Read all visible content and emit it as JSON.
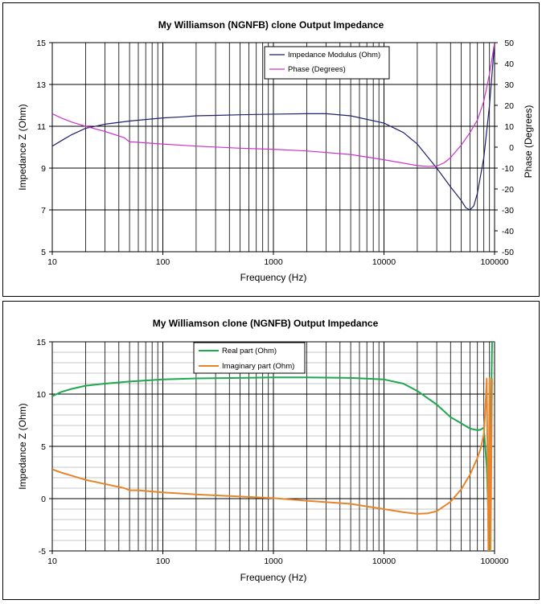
{
  "chart_data": [
    {
      "type": "line",
      "title": "My Williamson (NGNFB) clone Output Impedance",
      "xlabel": "Frequency (Hz)",
      "ylabel": "Impedance Z (Ohm)",
      "y2label": "Phase (Degrees)",
      "xscale": "log",
      "xlim": [
        10,
        100000
      ],
      "ylim": [
        5,
        15
      ],
      "y2lim": [
        -50,
        50
      ],
      "xticks": [
        "10",
        "100",
        "1000",
        "10000",
        "100000"
      ],
      "yticks": [
        "5",
        "7",
        "9",
        "11",
        "13",
        "15"
      ],
      "y2ticks": [
        "-50",
        "-40",
        "-30",
        "-20",
        "-10",
        "0",
        "10",
        "20",
        "30",
        "40",
        "50"
      ],
      "grid": true,
      "legend_position": "top-right",
      "series": [
        {
          "name": "Impedance Modulus (Ohm)",
          "axis": "left",
          "color": "#1f1f6e",
          "x": [
            10,
            12,
            15,
            20,
            30,
            50,
            100,
            150,
            200,
            300,
            500,
            1000,
            2000,
            3000,
            5000,
            10000,
            15000,
            20000,
            30000,
            40000,
            50000,
            55000,
            60000,
            65000,
            70000,
            80000,
            90000,
            100000
          ],
          "y": [
            10.05,
            10.3,
            10.6,
            10.9,
            11.1,
            11.25,
            11.4,
            11.45,
            11.5,
            11.52,
            11.55,
            11.58,
            11.6,
            11.6,
            11.5,
            11.15,
            10.7,
            10.15,
            9.0,
            8.1,
            7.45,
            7.1,
            7.0,
            7.2,
            7.8,
            9.5,
            12.0,
            15.0
          ]
        },
        {
          "name": "Phase (Degrees)",
          "axis": "right",
          "color": "#cc33cc",
          "x": [
            10,
            12,
            15,
            20,
            30,
            45,
            50,
            55,
            60,
            100,
            200,
            500,
            1000,
            2000,
            5000,
            10000,
            20000,
            25000,
            30000,
            35000,
            40000,
            50000,
            60000,
            70000,
            80000,
            90000,
            100000
          ],
          "y": [
            16,
            14,
            12,
            10,
            7.5,
            4.5,
            2.5,
            2.5,
            2.3,
            1.5,
            0.5,
            -0.5,
            -1,
            -1.8,
            -3.5,
            -6,
            -8.8,
            -9.2,
            -9,
            -7.5,
            -5,
            1,
            7,
            13,
            22,
            35,
            50
          ]
        }
      ]
    },
    {
      "type": "line",
      "title": "My Williamson clone (NGNFB) Output Impedance",
      "xlabel": "Frequency (Hz)",
      "ylabel": "Impedance Z (Ohm)",
      "xscale": "log",
      "xlim": [
        10,
        100000
      ],
      "ylim": [
        -5,
        15
      ],
      "xticks": [
        "10",
        "100",
        "1000",
        "10000",
        "100000"
      ],
      "yticks": [
        "-5",
        "0",
        "5",
        "10",
        "15"
      ],
      "grid": true,
      "legend_position": "top-left",
      "series": [
        {
          "name": "Real part (Ohm)",
          "color": "#1fa84f",
          "x": [
            10,
            12,
            15,
            20,
            30,
            50,
            100,
            200,
            500,
            1000,
            2000,
            5000,
            10000,
            15000,
            20000,
            30000,
            40000,
            50000,
            60000,
            70000,
            75000,
            80000,
            85000,
            90000,
            92000,
            95000,
            100000
          ],
          "y": [
            9.8,
            10.2,
            10.5,
            10.8,
            11.0,
            11.2,
            11.4,
            11.5,
            11.55,
            11.6,
            11.6,
            11.55,
            11.4,
            11.0,
            10.3,
            9.0,
            7.8,
            7.2,
            6.7,
            6.55,
            6.6,
            6.8,
            3.0,
            -5.0,
            5.0,
            15.0,
            15.0
          ]
        },
        {
          "name": "Imaginary part (Ohm)",
          "color": "#e8842b",
          "x": [
            10,
            12,
            15,
            20,
            30,
            45,
            50,
            60,
            100,
            200,
            500,
            1000,
            2000,
            5000,
            10000,
            15000,
            20000,
            25000,
            30000,
            40000,
            50000,
            60000,
            70000,
            75000,
            80000,
            82000,
            85000,
            88000,
            90000,
            92000,
            95000
          ],
          "y": [
            2.8,
            2.5,
            2.2,
            1.8,
            1.4,
            1.0,
            0.8,
            0.8,
            0.6,
            0.4,
            0.2,
            0.05,
            -0.2,
            -0.5,
            -1.0,
            -1.3,
            -1.45,
            -1.4,
            -1.2,
            -0.3,
            0.9,
            2.3,
            3.9,
            4.8,
            6.2,
            8.0,
            11.5,
            -5.0,
            11.5,
            -5.0,
            11.5
          ]
        }
      ]
    }
  ]
}
